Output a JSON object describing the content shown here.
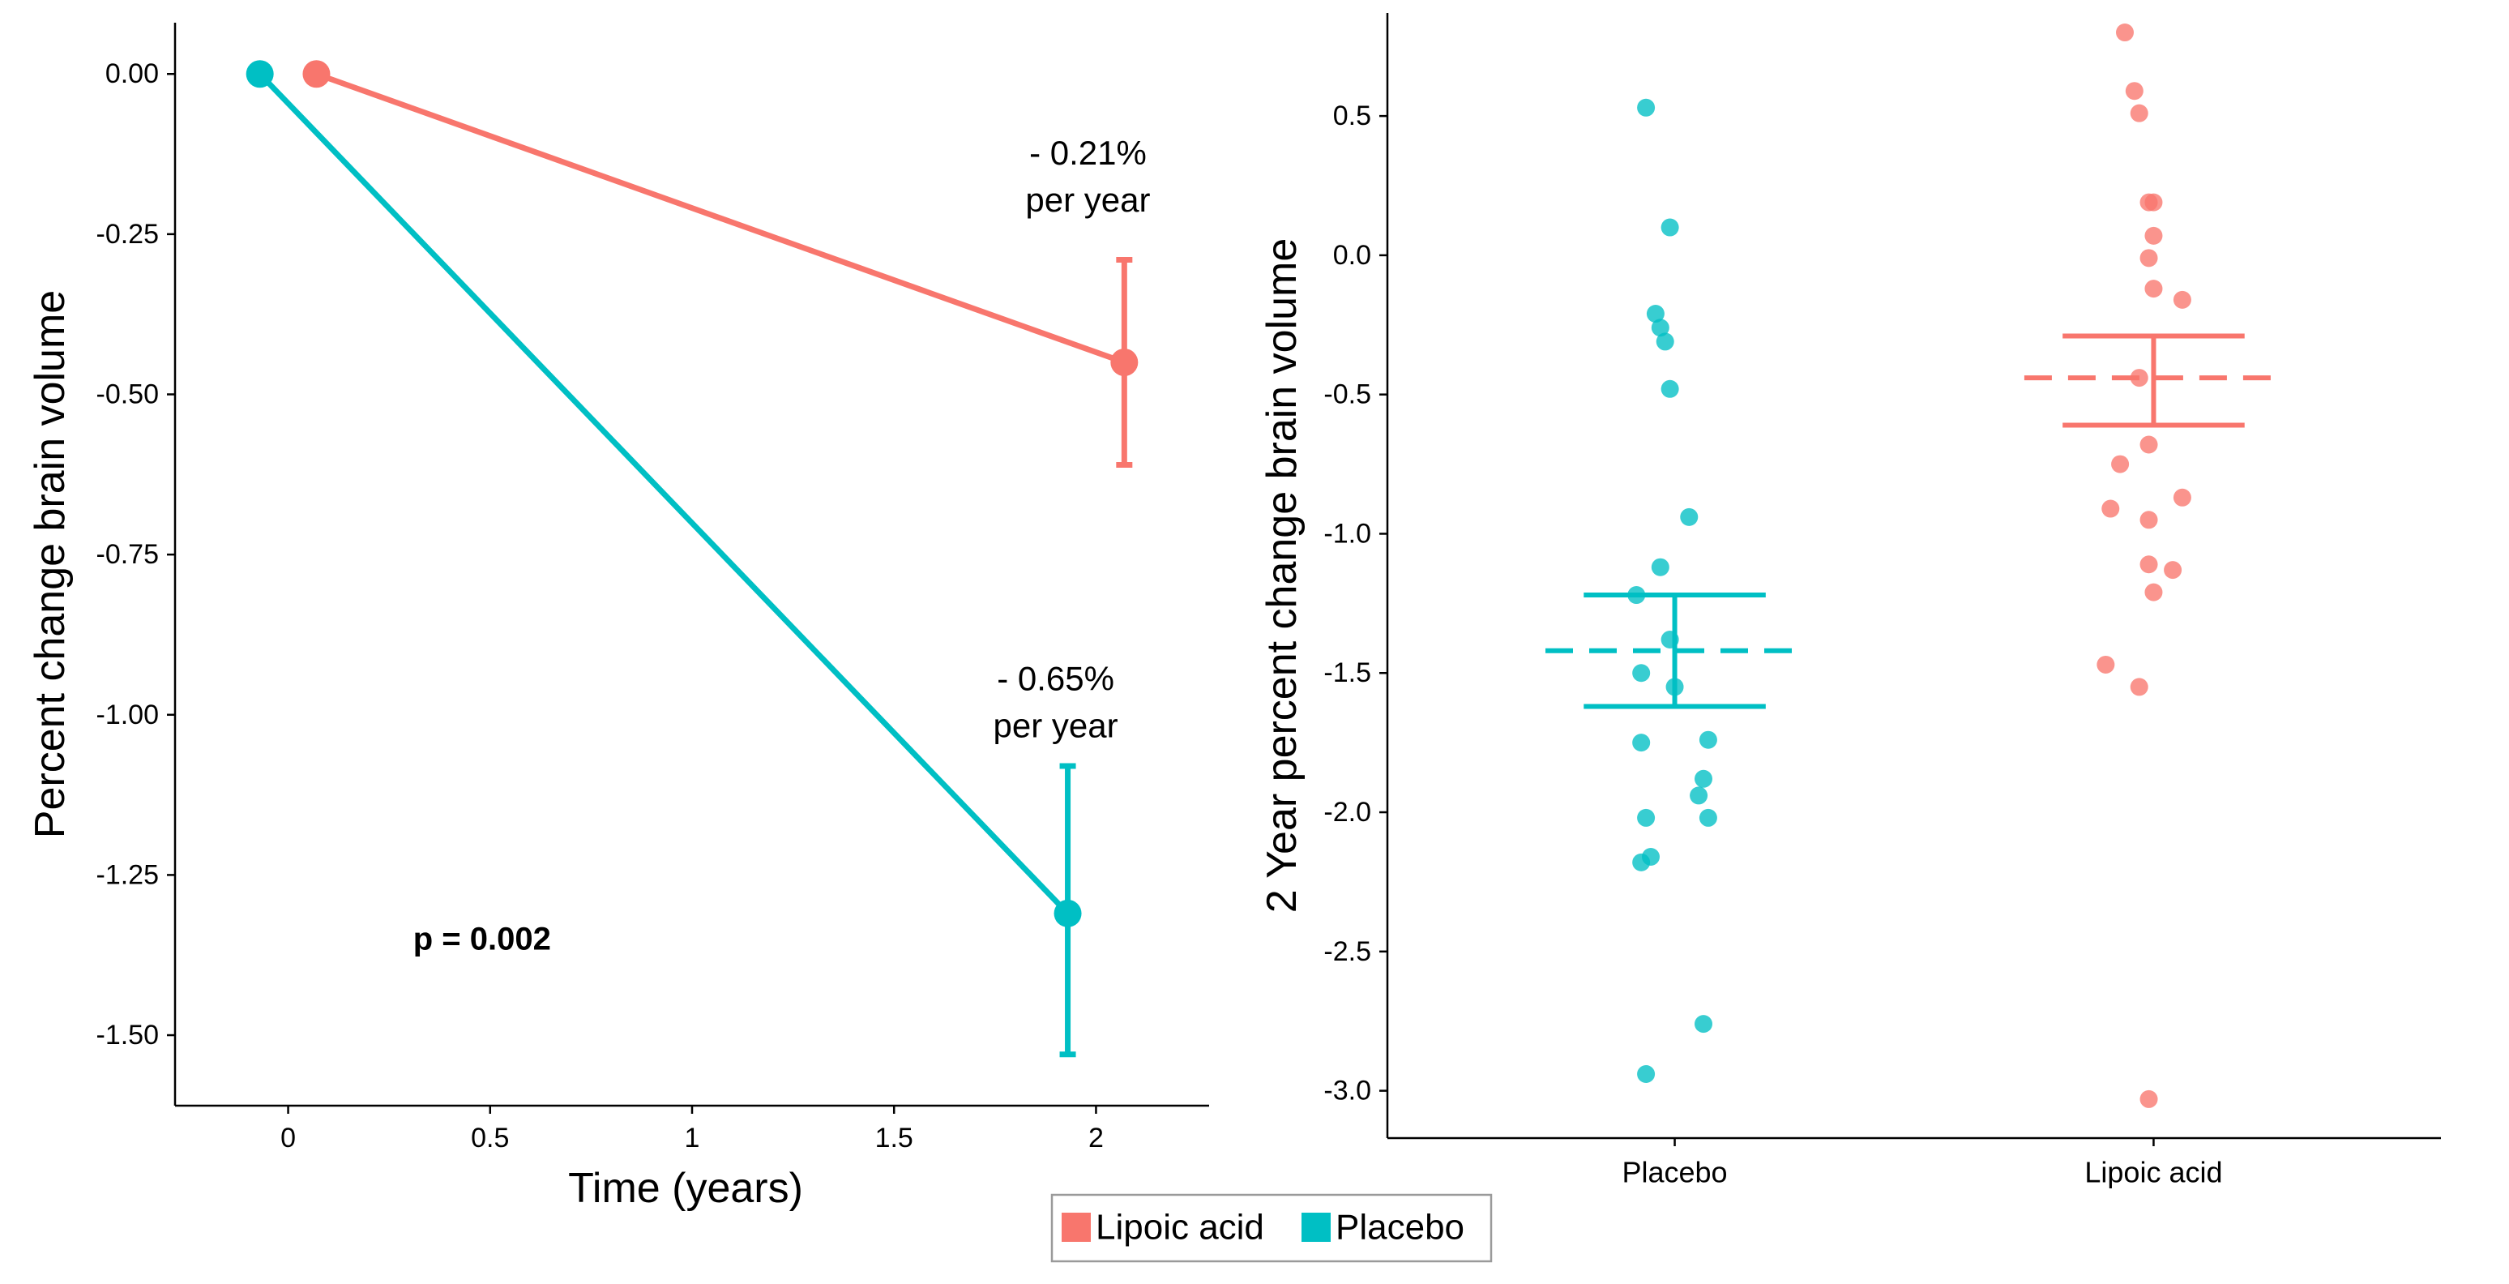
{
  "colors": {
    "lipoic": "#F8766D",
    "placebo": "#00BFC4"
  },
  "chart_data": [
    {
      "type": "line",
      "xlabel": "Time (years)",
      "ylabel": "Percent change brain volume",
      "xlim": [
        -0.28,
        2.28
      ],
      "ylim": [
        -1.61,
        0.08
      ],
      "x_ticks": [
        0,
        0.5,
        1,
        1.5,
        2
      ],
      "x_tick_labels": [
        "0",
        "0.5",
        "1",
        "1.5",
        "2"
      ],
      "y_ticks": [
        0,
        -0.25,
        -0.5,
        -0.75,
        -1.0,
        -1.25,
        -1.5
      ],
      "y_tick_labels": [
        "0.00",
        "-0.25",
        "-0.50",
        "-0.75",
        "-1.00",
        "-1.25",
        "-1.50"
      ],
      "grid": false,
      "series": [
        {
          "name": "Lipoic acid",
          "color": "#F8766D",
          "x": [
            0.07,
            2.07
          ],
          "y": [
            0.0,
            -0.45
          ],
          "error_low": -0.61,
          "error_high": -0.29
        },
        {
          "name": "Placebo",
          "color": "#00BFC4",
          "x": [
            -0.07,
            1.93
          ],
          "y": [
            0.0,
            -1.31
          ],
          "error_low": -1.53,
          "error_high": -1.08
        }
      ],
      "annotations": [
        {
          "lines": [
            "- 0.21%",
            "per year"
          ],
          "x": 1.98,
          "y": -0.16
        },
        {
          "lines": [
            "- 0.65%",
            "per year"
          ],
          "x": 1.9,
          "y": -0.98
        }
      ],
      "pvalue_text": "p = 0.002",
      "pvalue_pos": {
        "x": 0.48,
        "y": -1.35
      }
    },
    {
      "type": "scatter",
      "xlabel": "",
      "ylabel": "2 Year percent change brain volume",
      "categories": [
        "Placebo",
        "Lipoic acid"
      ],
      "xlim": [
        0.4,
        2.6
      ],
      "ylim": [
        -3.17,
        0.87
      ],
      "y_ticks": [
        0.5,
        0,
        -0.5,
        -1.0,
        -1.5,
        -2.0,
        -2.5,
        -3.0
      ],
      "y_tick_labels": [
        "0.5",
        "0.0",
        "-0.5",
        "-1.0",
        "-1.5",
        "-2.0",
        "-2.5",
        "-3.0"
      ],
      "grid": false,
      "series": [
        {
          "name": "Placebo",
          "color": "#00BFC4",
          "x": [
            0.94,
            0.99,
            0.97,
            0.98,
            0.96,
            0.99,
            1.03,
            0.97,
            0.92,
            0.99,
            0.93,
            1.0,
            0.93,
            1.07,
            1.06,
            1.05,
            0.94,
            1.07,
            0.95,
            0.93,
            1.06,
            0.94
          ],
          "y": [
            0.53,
            0.1,
            -0.26,
            -0.31,
            -0.21,
            -0.48,
            -0.94,
            -1.12,
            -1.22,
            -1.38,
            -1.5,
            -1.55,
            -1.75,
            -1.74,
            -1.88,
            -1.94,
            -2.02,
            -2.02,
            -2.16,
            -2.18,
            -2.76,
            -2.94
          ],
          "mean": -1.42,
          "se_low": -1.62,
          "se_high": -1.22
        },
        {
          "name": "Lipoic acid",
          "color": "#F8766D",
          "x": [
            1.94,
            1.96,
            1.97,
            1.99,
            2.0,
            2.0,
            1.99,
            2.0,
            2.06,
            1.97,
            1.99,
            1.93,
            2.06,
            1.91,
            1.99,
            1.99,
            2.04,
            2.0,
            1.9,
            1.97,
            1.99
          ],
          "y": [
            0.8,
            0.59,
            0.51,
            0.19,
            0.19,
            0.07,
            -0.01,
            -0.12,
            -0.16,
            -0.44,
            -0.68,
            -0.75,
            -0.87,
            -0.91,
            -0.95,
            -1.11,
            -1.13,
            -1.21,
            -1.47,
            -1.55,
            -3.03
          ],
          "mean": -0.44,
          "se_low": -0.61,
          "se_high": -0.29
        }
      ]
    }
  ],
  "legend": {
    "items": [
      {
        "label": "Lipoic acid",
        "color": "#F8766D"
      },
      {
        "label": "Placebo",
        "color": "#00BFC4"
      }
    ]
  }
}
